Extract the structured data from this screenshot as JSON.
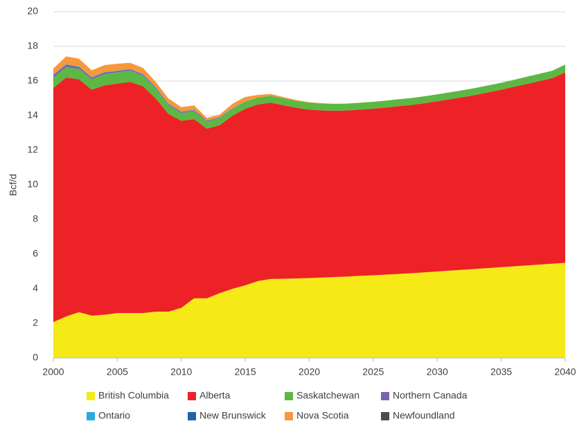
{
  "chart_data": {
    "type": "stacked_area",
    "y_label": "Bcf/d",
    "x": [
      2000,
      2001,
      2002,
      2003,
      2004,
      2005,
      2006,
      2007,
      2008,
      2009,
      2010,
      2011,
      2012,
      2013,
      2014,
      2015,
      2016,
      2017,
      2018,
      2019,
      2020,
      2021,
      2022,
      2023,
      2024,
      2025,
      2026,
      2027,
      2028,
      2029,
      2030,
      2031,
      2032,
      2033,
      2034,
      2035,
      2036,
      2037,
      2038,
      2039,
      2040
    ],
    "xlim": [
      2000,
      2040
    ],
    "xticks": [
      2000,
      2005,
      2010,
      2015,
      2020,
      2025,
      2030,
      2035,
      2040
    ],
    "ylim": [
      0,
      20
    ],
    "yticks": [
      0,
      2,
      4,
      6,
      8,
      10,
      12,
      14,
      16,
      18,
      20
    ],
    "grid": true,
    "series": [
      {
        "name": "British Columbia",
        "color": "#f5e918",
        "values": [
          2.08,
          2.4,
          2.65,
          2.45,
          2.5,
          2.6,
          2.6,
          2.6,
          2.68,
          2.68,
          2.9,
          3.45,
          3.45,
          3.75,
          4.0,
          4.2,
          4.45,
          4.57,
          4.58,
          4.6,
          4.62,
          4.65,
          4.68,
          4.71,
          4.75,
          4.78,
          4.82,
          4.86,
          4.9,
          4.95,
          5.0,
          5.05,
          5.1,
          5.15,
          5.2,
          5.25,
          5.3,
          5.35,
          5.4,
          5.45,
          5.5
        ]
      },
      {
        "name": "Alberta",
        "color": "#ec2227",
        "values": [
          13.52,
          13.8,
          13.45,
          13.05,
          13.25,
          13.25,
          13.35,
          13.1,
          12.32,
          11.42,
          10.8,
          10.35,
          9.8,
          9.7,
          10.0,
          10.2,
          10.2,
          10.18,
          10.02,
          9.85,
          9.73,
          9.65,
          9.6,
          9.59,
          9.6,
          9.62,
          9.65,
          9.69,
          9.72,
          9.77,
          9.83,
          9.9,
          9.97,
          10.05,
          10.15,
          10.25,
          10.37,
          10.48,
          10.6,
          10.72,
          11.0
        ]
      },
      {
        "name": "Saskatchewan",
        "color": "#5cb843",
        "values": [
          0.6,
          0.6,
          0.6,
          0.6,
          0.65,
          0.65,
          0.65,
          0.6,
          0.55,
          0.5,
          0.45,
          0.45,
          0.4,
          0.4,
          0.4,
          0.4,
          0.4,
          0.4,
          0.4,
          0.4,
          0.4,
          0.4,
          0.4,
          0.4,
          0.4,
          0.4,
          0.4,
          0.4,
          0.4,
          0.4,
          0.4,
          0.4,
          0.4,
          0.4,
          0.4,
          0.4,
          0.4,
          0.42,
          0.42,
          0.43,
          0.45
        ]
      },
      {
        "name": "Northern Canada",
        "color": "#7a64ad",
        "values": [
          0.15,
          0.15,
          0.12,
          0.1,
          0.1,
          0.08,
          0.08,
          0.07,
          0.06,
          0.05,
          0.05,
          0.05,
          0.04,
          0.03,
          0.02,
          0.01,
          0,
          0,
          0,
          0,
          0,
          0,
          0,
          0,
          0,
          0,
          0,
          0,
          0,
          0,
          0,
          0,
          0,
          0,
          0,
          0,
          0,
          0,
          0,
          0,
          0
        ]
      },
      {
        "name": "Ontario",
        "color": "#29aae1",
        "values": [
          0.02,
          0.02,
          0.02,
          0.02,
          0.02,
          0.02,
          0.02,
          0.02,
          0.02,
          0.02,
          0.02,
          0.02,
          0.01,
          0.01,
          0.01,
          0.01,
          0,
          0,
          0,
          0,
          0,
          0,
          0,
          0,
          0,
          0,
          0,
          0,
          0,
          0,
          0,
          0,
          0,
          0,
          0,
          0,
          0,
          0,
          0,
          0,
          0
        ]
      },
      {
        "name": "New Brunswick",
        "color": "#1f63ad",
        "values": [
          0,
          0,
          0,
          0,
          0,
          0,
          0,
          0.02,
          0.02,
          0.02,
          0.02,
          0.02,
          0.02,
          0.02,
          0.01,
          0.01,
          0,
          0,
          0,
          0,
          0,
          0,
          0,
          0,
          0,
          0,
          0,
          0,
          0,
          0,
          0,
          0,
          0,
          0,
          0,
          0,
          0,
          0,
          0,
          0,
          0
        ]
      },
      {
        "name": "Nova Scotia",
        "color": "#f7983a",
        "values": [
          0.35,
          0.45,
          0.45,
          0.4,
          0.4,
          0.4,
          0.35,
          0.35,
          0.3,
          0.3,
          0.25,
          0.25,
          0.15,
          0.15,
          0.25,
          0.25,
          0.15,
          0.1,
          0.07,
          0.05,
          0.03,
          0.02,
          0.01,
          0,
          0,
          0,
          0,
          0,
          0,
          0,
          0,
          0,
          0,
          0,
          0,
          0,
          0,
          0,
          0,
          0,
          0
        ]
      },
      {
        "name": "Newfoundland",
        "color": "#4d4d4d",
        "values": [
          0,
          0,
          0,
          0,
          0,
          0,
          0,
          0,
          0,
          0,
          0,
          0,
          0,
          0,
          0,
          0,
          0,
          0,
          0,
          0,
          0,
          0,
          0,
          0,
          0,
          0,
          0,
          0,
          0,
          0,
          0,
          0,
          0,
          0,
          0,
          0,
          0,
          0,
          0,
          0,
          0
        ]
      }
    ]
  }
}
